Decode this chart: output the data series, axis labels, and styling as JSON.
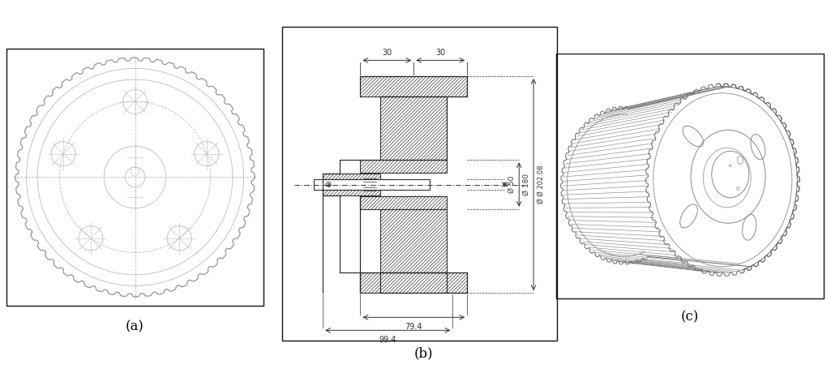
{
  "fig_width": 10.25,
  "fig_height": 4.55,
  "bg_color": "#ffffff",
  "line_color": "#aaaaaa",
  "dark_line": "#444444",
  "label_a": "(a)",
  "label_b": "(b)",
  "label_c": "(c)",
  "dim_30_1": "30",
  "dim_30_2": "30",
  "dim_phi50": "Ø 50",
  "dim_phi180": "Ø 180",
  "dim_phi202": "Ø Ø 202.08",
  "dim_79": "79.4",
  "dim_99": "99.4"
}
